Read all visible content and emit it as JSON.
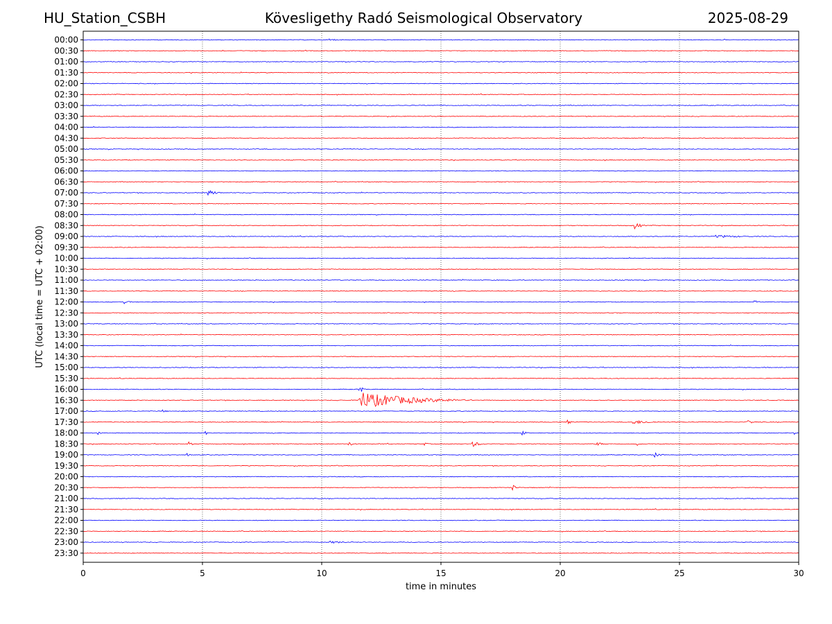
{
  "header": {
    "station": "HU_Station_CSBH",
    "title": "Kövesligethy Radó Seismological Observatory",
    "date": "2025-08-29"
  },
  "chart_data": {
    "type": "line",
    "chart_kind": "helicorder",
    "xlabel": "time in minutes",
    "ylabel": "UTC (local time = UTC + 02:00)",
    "xlim": [
      0,
      30
    ],
    "x_ticks": [
      0,
      5,
      10,
      15,
      20,
      25,
      30
    ],
    "vertical_gridlines": [
      5,
      10,
      15,
      20,
      25
    ],
    "rows": [
      "00:00",
      "00:30",
      "01:00",
      "01:30",
      "02:00",
      "02:30",
      "03:00",
      "03:30",
      "04:00",
      "04:30",
      "05:00",
      "05:30",
      "06:00",
      "06:30",
      "07:00",
      "07:30",
      "08:00",
      "08:30",
      "09:00",
      "09:30",
      "10:00",
      "10:30",
      "11:00",
      "11:30",
      "12:00",
      "12:30",
      "13:00",
      "13:30",
      "14:00",
      "14:30",
      "15:00",
      "15:30",
      "16:00",
      "16:30",
      "17:00",
      "17:30",
      "18:00",
      "18:30",
      "19:00",
      "19:30",
      "20:00",
      "20:30",
      "21:00",
      "21:30",
      "22:00",
      "22:30",
      "23:00",
      "23:30"
    ],
    "trace_colors": [
      "#0000ff",
      "#ff0000"
    ],
    "events": [
      {
        "row": "00:00",
        "minute": 10.3,
        "duration": 0.6,
        "amp": 0.25
      },
      {
        "row": "07:00",
        "minute": 5.2,
        "duration": 0.8,
        "amp": 0.45
      },
      {
        "row": "08:30",
        "minute": 23.1,
        "duration": 0.6,
        "amp": 0.55
      },
      {
        "row": "09:00",
        "minute": 26.5,
        "duration": 3.0,
        "amp": 0.2
      },
      {
        "row": "12:00",
        "minute": 1.7,
        "duration": 0.6,
        "amp": 0.25
      },
      {
        "row": "12:00",
        "minute": 28.1,
        "duration": 0.6,
        "amp": 0.25
      },
      {
        "row": "16:00",
        "minute": 11.55,
        "duration": 0.3,
        "amp": 0.9
      },
      {
        "row": "16:30",
        "minute": 11.55,
        "duration": 5.0,
        "amp": 1.2
      },
      {
        "row": "17:00",
        "minute": 3.3,
        "duration": 0.5,
        "amp": 0.2
      },
      {
        "row": "17:30",
        "minute": 20.3,
        "duration": 0.4,
        "amp": 0.3
      },
      {
        "row": "17:30",
        "minute": 23.0,
        "duration": 1.8,
        "amp": 0.3
      },
      {
        "row": "17:30",
        "minute": 27.8,
        "duration": 0.6,
        "amp": 0.4
      },
      {
        "row": "18:00",
        "minute": 0.6,
        "duration": 0.3,
        "amp": 0.3
      },
      {
        "row": "18:00",
        "minute": 5.1,
        "duration": 0.3,
        "amp": 0.3
      },
      {
        "row": "18:00",
        "minute": 18.4,
        "duration": 0.4,
        "amp": 0.3
      },
      {
        "row": "18:00",
        "minute": 29.8,
        "duration": 0.2,
        "amp": 0.3
      },
      {
        "row": "18:30",
        "minute": 4.4,
        "duration": 0.3,
        "amp": 0.6
      },
      {
        "row": "18:30",
        "minute": 11.1,
        "duration": 0.5,
        "amp": 0.35
      },
      {
        "row": "18:30",
        "minute": 14.2,
        "duration": 0.4,
        "amp": 0.35
      },
      {
        "row": "18:30",
        "minute": 16.3,
        "duration": 0.8,
        "amp": 0.4
      },
      {
        "row": "18:30",
        "minute": 21.5,
        "duration": 0.5,
        "amp": 0.35
      },
      {
        "row": "18:30",
        "minute": 23.2,
        "duration": 0.3,
        "amp": 0.3
      },
      {
        "row": "19:00",
        "minute": 4.3,
        "duration": 0.3,
        "amp": 0.35
      },
      {
        "row": "19:00",
        "minute": 23.9,
        "duration": 0.6,
        "amp": 0.45
      },
      {
        "row": "20:30",
        "minute": 18.0,
        "duration": 0.4,
        "amp": 0.4
      },
      {
        "row": "23:00",
        "minute": 10.3,
        "duration": 1.8,
        "amp": 0.18
      }
    ]
  }
}
